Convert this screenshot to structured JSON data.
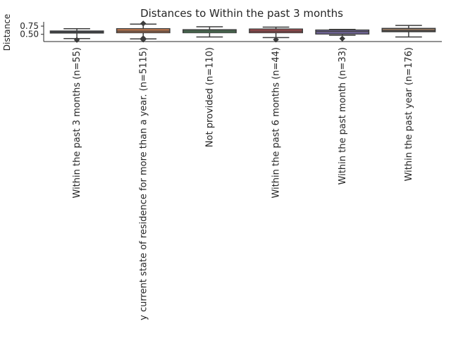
{
  "chart_data": {
    "type": "box",
    "title": "Distances to Within the past 3 months",
    "xlabel": "",
    "ylabel": "Distance",
    "yticks": [
      0.5,
      0.75
    ],
    "ytick_labels": [
      "0.50",
      "0.75"
    ],
    "ylim": [
      0.28,
      0.88
    ],
    "grid": false,
    "categories": [
      "Within the past 3 months (n=55)",
      "y current state of residence for more than a year. (n=5115)",
      "Not provided (n=110)",
      "Within the past 6 months (n=44)",
      "Within the past month (n=33)",
      "Within the past year (n=176)"
    ],
    "boxes": [
      {
        "whislo": 0.37,
        "q1": 0.54,
        "med": 0.57,
        "q3": 0.6,
        "whishi": 0.67,
        "fliers": [
          0.33
        ],
        "color": "#4c72b0"
      },
      {
        "whislo": 0.36,
        "q1": 0.55,
        "med": 0.6,
        "q3": 0.67,
        "whishi": 0.81,
        "fliers": [
          0.83,
          0.38,
          0.34
        ],
        "color": "#dd8452"
      },
      {
        "whislo": 0.42,
        "q1": 0.55,
        "med": 0.6,
        "q3": 0.64,
        "whishi": 0.73,
        "fliers": [],
        "color": "#55a868"
      },
      {
        "whislo": 0.4,
        "q1": 0.55,
        "med": 0.6,
        "q3": 0.66,
        "whishi": 0.72,
        "fliers": [
          0.34
        ],
        "color": "#c44e52"
      },
      {
        "whislo": 0.47,
        "q1": 0.51,
        "med": 0.58,
        "q3": 0.63,
        "whishi": 0.65,
        "fliers": [
          0.37
        ],
        "color": "#8172b3"
      },
      {
        "whislo": 0.42,
        "q1": 0.58,
        "med": 0.61,
        "q3": 0.68,
        "whishi": 0.77,
        "fliers": [],
        "color": "#937860"
      }
    ]
  }
}
